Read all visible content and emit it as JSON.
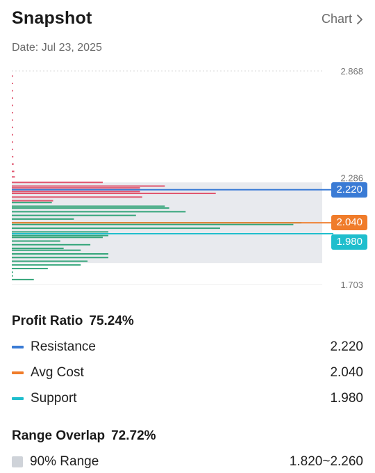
{
  "header": {
    "title": "Snapshot",
    "chart_link_label": "Chart"
  },
  "date_label": "Date: Jul 23, 2025",
  "colors": {
    "resistance": "#3a7bd5",
    "avg_cost": "#f07c2a",
    "support": "#1fbecd",
    "range_fill": "#e8eaee",
    "range_swatch": "#cfd3d9",
    "loss_bars": "#e0556e",
    "profit_bars": "#34a57a"
  },
  "chart_data": {
    "type": "bar",
    "orientation": "horizontal",
    "y_ticks": [
      "2.868",
      "2.286",
      "1.703"
    ],
    "ylim": [
      1.703,
      2.868
    ],
    "range_band": [
      1.82,
      2.26
    ],
    "lines": [
      {
        "name": "Resistance",
        "value": 2.22,
        "label": "2.220"
      },
      {
        "name": "Avg Cost",
        "value": 2.04,
        "label": "2.040"
      },
      {
        "name": "Support",
        "value": 1.98,
        "label": "1.980"
      }
    ],
    "loss_bars": [
      {
        "price": 2.84,
        "length": 0.4
      },
      {
        "price": 2.8,
        "length": 0.4
      },
      {
        "price": 2.76,
        "length": 0.4
      },
      {
        "price": 2.72,
        "length": 0.4
      },
      {
        "price": 2.68,
        "length": 0.4
      },
      {
        "price": 2.64,
        "length": 0.4
      },
      {
        "price": 2.6,
        "length": 0.4
      },
      {
        "price": 2.56,
        "length": 0.4
      },
      {
        "price": 2.52,
        "length": 0.4
      },
      {
        "price": 2.48,
        "length": 0.4
      },
      {
        "price": 2.44,
        "length": 0.4
      },
      {
        "price": 2.4,
        "length": 0.5
      },
      {
        "price": 2.36,
        "length": 0.6
      },
      {
        "price": 2.32,
        "length": 0.8
      },
      {
        "price": 2.29,
        "length": 1.0
      },
      {
        "price": 2.26,
        "length": 29.3
      },
      {
        "price": 2.24,
        "length": 49.3
      },
      {
        "price": 2.23,
        "length": 41.3
      },
      {
        "price": 2.21,
        "length": 41.3
      },
      {
        "price": 2.2,
        "length": 65.7
      },
      {
        "price": 2.18,
        "length": 42.0
      },
      {
        "price": 2.16,
        "length": 13.3
      }
    ],
    "profit_bars": [
      {
        "price": 2.15,
        "length": 12.9
      },
      {
        "price": 2.13,
        "length": 49.3
      },
      {
        "price": 2.12,
        "length": 50.7
      },
      {
        "price": 2.1,
        "length": 56.0
      },
      {
        "price": 2.08,
        "length": 40.0
      },
      {
        "price": 2.06,
        "length": 20.0
      },
      {
        "price": 2.04,
        "length": 93.3
      },
      {
        "price": 2.03,
        "length": 90.7
      },
      {
        "price": 2.01,
        "length": 67.1
      },
      {
        "price": 1.99,
        "length": 31.1
      },
      {
        "price": 1.97,
        "length": 31.1
      },
      {
        "price": 1.96,
        "length": 29.3
      },
      {
        "price": 1.94,
        "length": 15.6
      },
      {
        "price": 1.92,
        "length": 25.3
      },
      {
        "price": 1.9,
        "length": 16.7
      },
      {
        "price": 1.89,
        "length": 22.2
      },
      {
        "price": 1.87,
        "length": 31.1
      },
      {
        "price": 1.85,
        "length": 31.1
      },
      {
        "price": 1.83,
        "length": 24.4
      },
      {
        "price": 1.81,
        "length": 22.2
      },
      {
        "price": 1.79,
        "length": 11.6
      },
      {
        "price": 1.77,
        "length": 0.4
      },
      {
        "price": 1.75,
        "length": 0.4
      },
      {
        "price": 1.73,
        "length": 7.1
      }
    ]
  },
  "profit_ratio": {
    "label": "Profit Ratio",
    "value": "75.24%"
  },
  "legend": [
    {
      "label": "Resistance",
      "value": "2.220",
      "color": "#3a7bd5"
    },
    {
      "label": "Avg Cost",
      "value": "2.040",
      "color": "#f07c2a"
    },
    {
      "label": "Support",
      "value": "1.980",
      "color": "#1fbecd"
    }
  ],
  "range_overlap": {
    "label": "Range Overlap",
    "value": "72.72%"
  },
  "range": {
    "label": "90% Range",
    "value": "1.820~2.260"
  }
}
